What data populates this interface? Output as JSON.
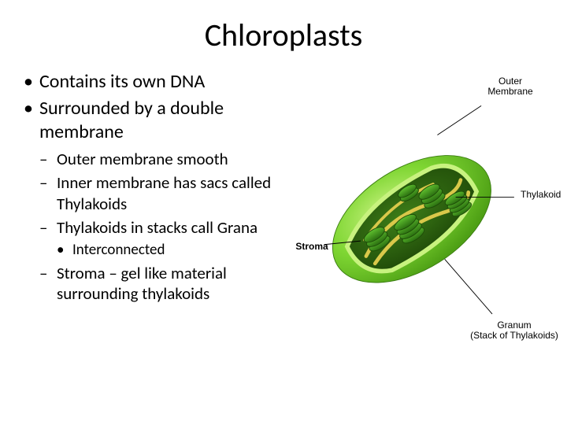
{
  "title": "Chloroplasts",
  "bullets": {
    "b1": "Contains its own DNA",
    "b2": "Surrounded by a double membrane",
    "s1": "Outer membrane smooth",
    "s2": "Inner membrane has sacs called Thylakoids",
    "s3": "Thylakoids in stacks call Grana",
    "s3a": "Interconnected",
    "s4": "Stroma – gel like material surrounding thylakoids"
  },
  "diagram": {
    "labels": {
      "outer_membrane": "Outer\nMembrane",
      "thylakoid": "Thylakoid",
      "stroma": "Stroma",
      "granum": "Granum\n(Stack of Thylakoids)"
    },
    "colors": {
      "outer_light": "#a8e85a",
      "outer_mid": "#7fd633",
      "outer_dark": "#4ea015",
      "cut_edge": "#c8f27f",
      "inner_dark": "#2d6b0e",
      "grana_disc": "#3d9b1f",
      "grana_edge": "#2a6e10",
      "lamellae": "#d9c84a",
      "lamellae_edge": "#b8a830",
      "leader": "#000000",
      "background": "#ffffff"
    },
    "label_fontsize": 12,
    "structure": "labeled-cutaway-illustration"
  }
}
